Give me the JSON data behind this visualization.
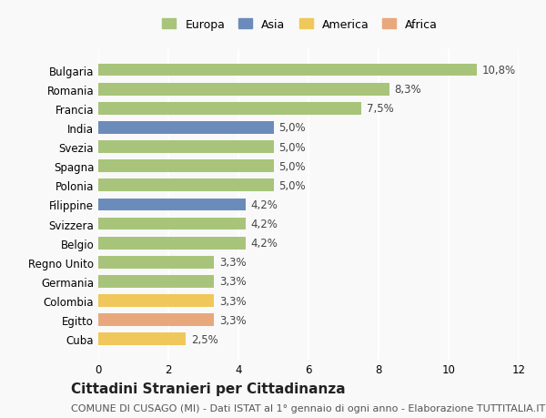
{
  "categories": [
    "Bulgaria",
    "Romania",
    "Francia",
    "India",
    "Svezia",
    "Spagna",
    "Polonia",
    "Filippine",
    "Svizzera",
    "Belgio",
    "Regno Unito",
    "Germania",
    "Colombia",
    "Egitto",
    "Cuba"
  ],
  "values": [
    10.8,
    8.3,
    7.5,
    5.0,
    5.0,
    5.0,
    5.0,
    4.2,
    4.2,
    4.2,
    3.3,
    3.3,
    3.3,
    3.3,
    2.5
  ],
  "labels": [
    "10,8%",
    "8,3%",
    "7,5%",
    "5,0%",
    "5,0%",
    "5,0%",
    "5,0%",
    "4,2%",
    "4,2%",
    "4,2%",
    "3,3%",
    "3,3%",
    "3,3%",
    "3,3%",
    "2,5%"
  ],
  "continents": [
    "Europa",
    "Europa",
    "Europa",
    "Asia",
    "Europa",
    "Europa",
    "Europa",
    "Asia",
    "Europa",
    "Europa",
    "Europa",
    "Europa",
    "America",
    "Africa",
    "America"
  ],
  "colors": {
    "Europa": "#a8c47a",
    "Asia": "#6b8cba",
    "America": "#f0c75a",
    "Africa": "#e8a87c"
  },
  "legend_order": [
    "Europa",
    "Asia",
    "America",
    "Africa"
  ],
  "xlim": [
    0,
    12
  ],
  "xticks": [
    0,
    2,
    4,
    6,
    8,
    10,
    12
  ],
  "title": "Cittadini Stranieri per Cittadinanza",
  "subtitle": "COMUNE DI CUSAGO (MI) - Dati ISTAT al 1° gennaio di ogni anno - Elaborazione TUTTITALIA.IT",
  "bg_color": "#f9f9f9",
  "grid_color": "#ffffff",
  "title_fontsize": 11,
  "subtitle_fontsize": 8,
  "label_fontsize": 8.5,
  "tick_fontsize": 8.5
}
